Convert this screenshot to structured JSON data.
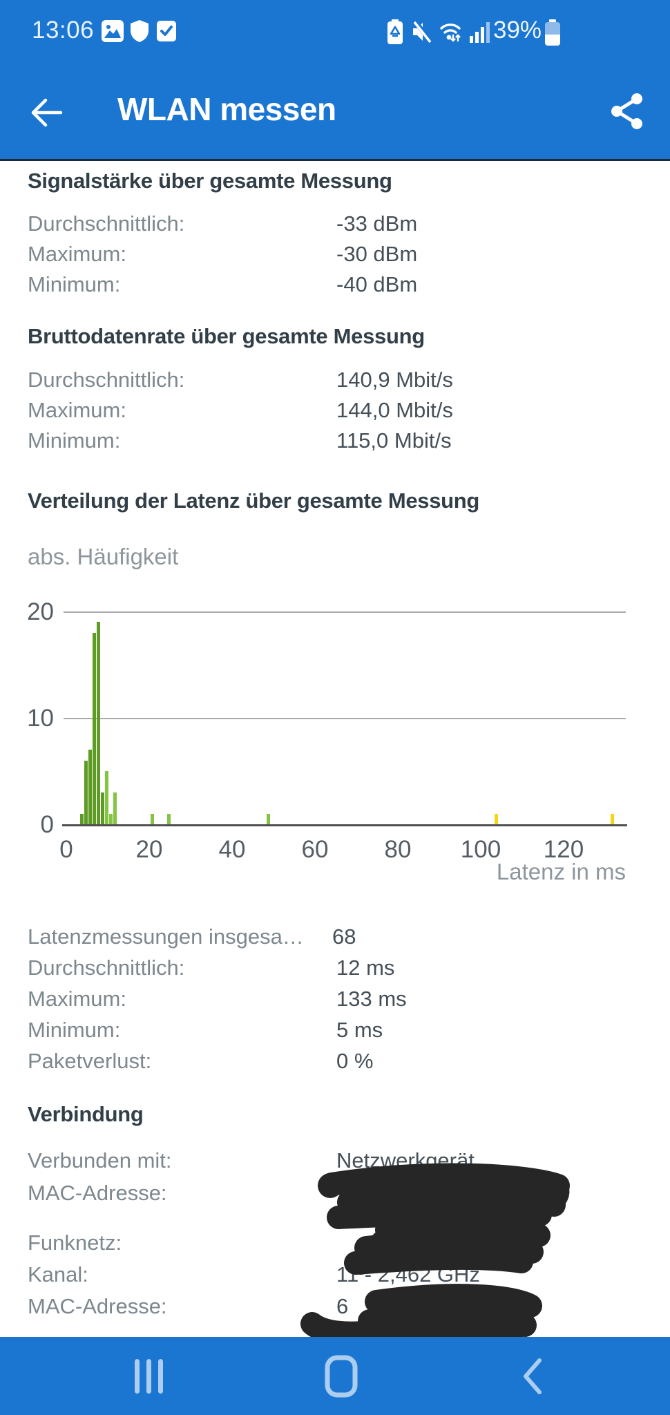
{
  "status_bar": {
    "time": "13:06",
    "battery_percent": "39%",
    "left_icons": [
      "gallery-icon",
      "shield-icon",
      "checkbox-icon"
    ],
    "right_icons": [
      "battery-saver-icon",
      "mute-icon",
      "wifi-icon",
      "signal-icon",
      "battery-icon"
    ]
  },
  "header": {
    "title": "WLAN messen"
  },
  "sections": {
    "signal": {
      "title": "Signalstärke über gesamte Messung",
      "rows": [
        {
          "label": "Durchschnittlich:",
          "value": "-33 dBm"
        },
        {
          "label": "Maximum:",
          "value": "-30 dBm"
        },
        {
          "label": "Minimum:",
          "value": "-40 dBm"
        }
      ]
    },
    "datarate": {
      "title": "Bruttodatenrate über gesamte Messung",
      "rows": [
        {
          "label": "Durchschnittlich:",
          "value": "140,9 Mbit/s"
        },
        {
          "label": "Maximum:",
          "value": "144,0 Mbit/s"
        },
        {
          "label": "Minimum:",
          "value": "115,0 Mbit/s"
        }
      ]
    },
    "latency": {
      "title": "Verteilung der Latenz über gesamte Messung",
      "stats": [
        {
          "label": "Latenzmessungen insgesa…",
          "value": "68"
        },
        {
          "label": "Durchschnittlich:",
          "value": "12 ms"
        },
        {
          "label": "Maximum:",
          "value": "133 ms"
        },
        {
          "label": "Minimum:",
          "value": "5 ms"
        },
        {
          "label": "Paketverlust:",
          "value": "0 %"
        }
      ]
    },
    "connection": {
      "title": "Verbindung",
      "rows": [
        {
          "label": "Verbunden mit:",
          "value": "Netzwerkgerät",
          "redacted": false
        },
        {
          "label": "MAC-Adresse:",
          "value": "",
          "redacted": true
        },
        {
          "label": "Funknetz:",
          "value": "",
          "redacted": true
        },
        {
          "label": "Kanal:",
          "value": "11 - 2,462 GHz",
          "redacted": false
        },
        {
          "label": "MAC-Adresse:",
          "value": "6",
          "redacted": true
        }
      ]
    }
  },
  "chart_data": {
    "type": "bar",
    "title": "Verteilung der Latenz über gesamte Messung",
    "ylabel": "abs. Häufigkeit",
    "xlabel": "Latenz in ms",
    "ylim": [
      0,
      20
    ],
    "xlim": [
      0,
      135
    ],
    "yticks": [
      0,
      10,
      20
    ],
    "xticks": [
      0,
      20,
      40,
      60,
      80,
      100,
      120
    ],
    "grid": true,
    "legend": "none",
    "bars": [
      {
        "x": 5,
        "count": 1,
        "color": "#5d9b25"
      },
      {
        "x": 6,
        "count": 6,
        "color": "#5d9b25"
      },
      {
        "x": 7,
        "count": 7,
        "color": "#5d9b25"
      },
      {
        "x": 8,
        "count": 18,
        "color": "#5d9b25"
      },
      {
        "x": 9,
        "count": 19,
        "color": "#5d9b25"
      },
      {
        "x": 10,
        "count": 3,
        "color": "#5d9b25"
      },
      {
        "x": 11,
        "count": 5,
        "color": "#85c443"
      },
      {
        "x": 12,
        "count": 1,
        "color": "#85c443"
      },
      {
        "x": 13,
        "count": 3,
        "color": "#85c443"
      },
      {
        "x": 22,
        "count": 1,
        "color": "#85c443"
      },
      {
        "x": 26,
        "count": 1,
        "color": "#85c443"
      },
      {
        "x": 50,
        "count": 1,
        "color": "#85c443"
      },
      {
        "x": 105,
        "count": 1,
        "color": "#f5d616"
      },
      {
        "x": 133,
        "count": 1,
        "color": "#f5d616"
      }
    ]
  },
  "nav_bar": {
    "icons": [
      "recents-icon",
      "home-icon",
      "back-icon"
    ]
  },
  "colors": {
    "app_blue": "#1b76d1",
    "nav_icon_blue": "#abcdf0",
    "heading_text": "#323f48",
    "label_text": "#7d878e",
    "value_text": "#454f57",
    "bar_dark_green": "#5d9b25",
    "bar_light_green": "#85c443",
    "bar_yellow": "#f5d616",
    "grid_line": "#ababab",
    "axis_line": "#4f4f4f",
    "redaction": "#262626"
  }
}
